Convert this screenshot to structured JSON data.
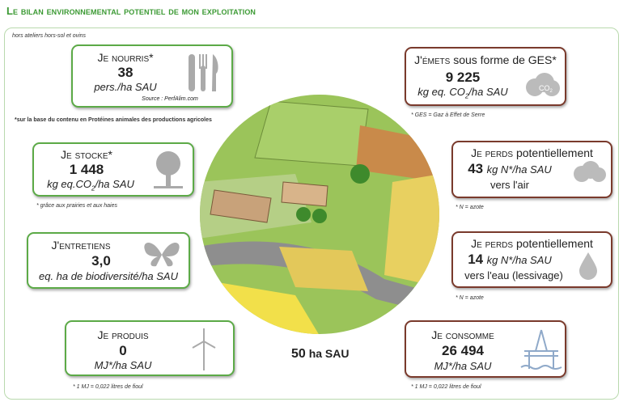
{
  "header": {
    "title": "Le bilan environnemental potentiel de mon exploitation"
  },
  "scope_note": "hors ateliers hors-sol et ovins",
  "center": {
    "value": "50",
    "unit": "ha SAU"
  },
  "left": [
    {
      "label": "Je nourris*",
      "value": "38",
      "unit": "pers./ha SAU",
      "source": "Source : PerfAlim.com",
      "footnote": "*sur la base du contenu en Protéines animales des productions agricoles"
    },
    {
      "label": "Je stocke*",
      "value": "1 448",
      "unit": [
        "kg eq.CO",
        "2",
        "/ha SAU"
      ],
      "footnote": "* grâce aux prairies et aux haies"
    },
    {
      "label": "J'entretiens",
      "value": "3,0",
      "unit": "eq. ha de biodiversité/ha SAU"
    },
    {
      "label": "Je produis",
      "value": "0",
      "unit": "MJ*/ha SAU",
      "footnote": "* 1 MJ = 0,022 litres de fioul"
    }
  ],
  "right": [
    {
      "label": "J'émets",
      "label_rest": "sous forme de GES*",
      "value": "9 225",
      "unit": [
        "kg eq. CO",
        "2",
        "/ha SAU"
      ],
      "icon_text": [
        "CO",
        "2"
      ],
      "footnote": "* GES = Gaz à Effet de Serre"
    },
    {
      "label": "Je perds",
      "label_rest": "potentiellement",
      "value": "43",
      "unit": "kg N*/ha SAU",
      "destination": "vers l'air",
      "footnote": "* N = azote"
    },
    {
      "label": "Je perds",
      "label_rest": "potentiellement",
      "value": "14",
      "unit": "kg N*/ha SAU",
      "destination": "vers l'eau (lessivage)",
      "footnote": "* N = azote"
    },
    {
      "label": "Je consomme",
      "value": "26 494",
      "unit": "MJ*/ha SAU",
      "footnote": "* 1 MJ = 0,022 litres de fioul"
    }
  ]
}
